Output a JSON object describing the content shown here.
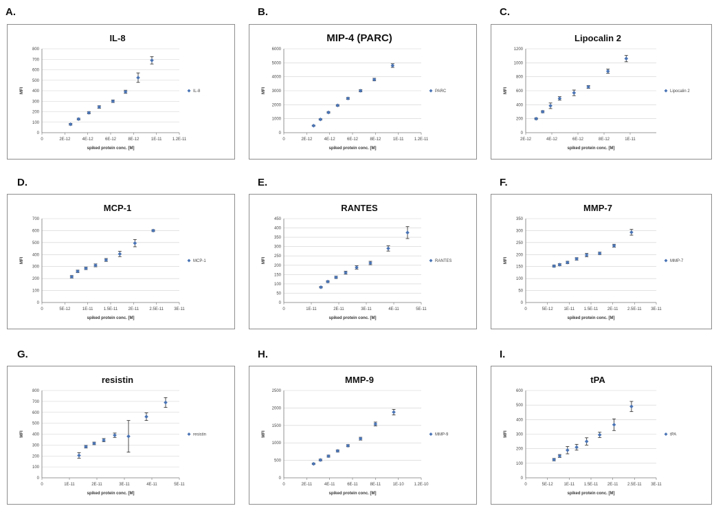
{
  "chart_data": [
    {
      "panel": "A.",
      "type": "scatter",
      "title": "IL-8",
      "xlabel": "spiked protein conc. [M]",
      "ylabel": "MFI",
      "xlim": [
        0,
        1.2e-11
      ],
      "ylim": [
        0,
        800
      ],
      "x_ticks": [
        0,
        2e-12,
        4e-12,
        6e-12,
        8e-12,
        1e-11,
        1.2e-11
      ],
      "x_tick_labels": [
        "0",
        "2E-12",
        "4E-12",
        "6E-12",
        "8E-12",
        "1E-11",
        "1.2E-11"
      ],
      "y_ticks": [
        0,
        100,
        200,
        300,
        400,
        500,
        600,
        700,
        800
      ],
      "y_tick_labels": [
        "0",
        "100",
        "200",
        "300",
        "400",
        "500",
        "600",
        "700",
        "800"
      ],
      "grid": "horizontal",
      "legend": "right",
      "series": [
        {
          "name": "IL-8",
          "color": "#4a74b5",
          "x": [
            2.5e-12,
            3.2e-12,
            4.1e-12,
            5e-12,
            6.2e-12,
            7.3e-12,
            8.4e-12,
            9.6e-12
          ],
          "y": [
            80,
            130,
            190,
            245,
            300,
            390,
            525,
            690
          ],
          "err": [
            8,
            8,
            10,
            12,
            12,
            15,
            45,
            35
          ]
        }
      ]
    },
    {
      "panel": "B.",
      "type": "scatter",
      "title": "MIP-4 (PARC)",
      "xlabel": "spiked protein conc. [M]",
      "ylabel": "MFI",
      "xlim": [
        0,
        1.2e-11
      ],
      "ylim": [
        0,
        6000
      ],
      "x_ticks": [
        0,
        2e-12,
        4e-12,
        6e-12,
        8e-12,
        1e-11,
        1.2e-11
      ],
      "x_tick_labels": [
        "0",
        "2E-12",
        "4E-12",
        "6E-12",
        "8E-12",
        "1E-11",
        "1.2E-11"
      ],
      "y_ticks": [
        0,
        1000,
        2000,
        3000,
        4000,
        5000,
        6000
      ],
      "y_tick_labels": [
        "0",
        "1000",
        "2000",
        "3000",
        "4000",
        "5000",
        "6000"
      ],
      "grid": "horizontal",
      "legend": "right",
      "series": [
        {
          "name": "PARC",
          "color": "#4a74b5",
          "x": [
            2.6e-12,
            3.2e-12,
            3.9e-12,
            4.7e-12,
            5.6e-12,
            6.7e-12,
            7.9e-12,
            9.5e-12
          ],
          "y": [
            500,
            950,
            1450,
            1950,
            2450,
            3000,
            3800,
            4800
          ],
          "err": [
            40,
            50,
            60,
            60,
            70,
            80,
            90,
            130
          ]
        }
      ]
    },
    {
      "panel": "C.",
      "type": "scatter",
      "title": "Lipocalin 2",
      "xlabel": "spiked protein conc. [M]",
      "ylabel": "MFI",
      "xlim": [
        2e-12,
        1.2e-11
      ],
      "ylim": [
        0,
        1200
      ],
      "x_ticks": [
        2e-12,
        4e-12,
        6e-12,
        8e-12,
        1e-11
      ],
      "x_tick_labels": [
        "2E-12",
        "4E-12",
        "6E-12",
        "8E-12",
        "1E-11"
      ],
      "y_ticks": [
        0,
        200,
        400,
        600,
        800,
        1000,
        1200
      ],
      "y_tick_labels": [
        "0",
        "200",
        "400",
        "600",
        "800",
        "1000",
        "1200"
      ],
      "grid": "horizontal",
      "legend": "right",
      "series": [
        {
          "name": "Lipocalin 2",
          "color": "#4a74b5",
          "x": [
            2.8e-12,
            3.3e-12,
            3.9e-12,
            4.6e-12,
            5.7e-12,
            6.8e-12,
            8.3e-12,
            9.7e-12
          ],
          "y": [
            200,
            300,
            385,
            490,
            570,
            655,
            880,
            1060
          ],
          "err": [
            12,
            15,
            40,
            25,
            40,
            20,
            30,
            45
          ]
        }
      ]
    },
    {
      "panel": "D.",
      "type": "scatter",
      "title": "MCP-1",
      "xlabel": "spiked protein conc. [M]",
      "ylabel": "MFI",
      "xlim": [
        0,
        3e-11
      ],
      "ylim": [
        0,
        700
      ],
      "x_ticks": [
        0,
        5e-12,
        1e-11,
        1.5e-11,
        2e-11,
        2.5e-11,
        3e-11
      ],
      "x_tick_labels": [
        "0",
        "5E-12",
        "1E-11",
        "1.5E-11",
        "2E-11",
        "2.5E-11",
        "3E-11"
      ],
      "y_ticks": [
        0,
        100,
        200,
        300,
        400,
        500,
        600,
        700
      ],
      "y_tick_labels": [
        "0",
        "100",
        "200",
        "300",
        "400",
        "500",
        "600",
        "700"
      ],
      "grid": "horizontal",
      "legend": "right",
      "series": [
        {
          "name": "MCP-1",
          "color": "#4a74b5",
          "x": [
            6.5e-12,
            7.8e-12,
            9.6e-12,
            1.17e-11,
            1.4e-11,
            1.7e-11,
            2.03e-11,
            2.43e-11
          ],
          "y": [
            215,
            260,
            285,
            310,
            355,
            405,
            495,
            600
          ],
          "err": [
            10,
            10,
            10,
            12,
            12,
            22,
            30,
            8
          ]
        }
      ]
    },
    {
      "panel": "E.",
      "type": "scatter",
      "title": "RANTES",
      "xlabel": "spiked protein conc. [M]",
      "ylabel": "MFI",
      "xlim": [
        0,
        5e-11
      ],
      "ylim": [
        0,
        450
      ],
      "x_ticks": [
        0,
        1e-11,
        2e-11,
        3e-11,
        4e-11,
        5e-11
      ],
      "x_tick_labels": [
        "0",
        "1E-11",
        "2E-11",
        "3E-11",
        "4E-11",
        "5E-11"
      ],
      "y_ticks": [
        0,
        50,
        100,
        150,
        200,
        250,
        300,
        350,
        400,
        450
      ],
      "y_tick_labels": [
        "0",
        "50",
        "100",
        "150",
        "200",
        "250",
        "300",
        "350",
        "400",
        "450"
      ],
      "grid": "horizontal",
      "legend": "right",
      "series": [
        {
          "name": "RANTES",
          "color": "#4a74b5",
          "x": [
            1.35e-11,
            1.6e-11,
            1.9e-11,
            2.25e-11,
            2.65e-11,
            3.15e-11,
            3.8e-11,
            4.5e-11
          ],
          "y": [
            82,
            112,
            135,
            160,
            188,
            212,
            290,
            375
          ],
          "err": [
            4,
            5,
            6,
            8,
            9,
            9,
            14,
            32
          ]
        }
      ]
    },
    {
      "panel": "F.",
      "type": "scatter",
      "title": "MMP-7",
      "xlabel": "spiked protein conc. [M]",
      "ylabel": "MFI",
      "xlim": [
        0,
        3e-11
      ],
      "ylim": [
        0,
        350
      ],
      "x_ticks": [
        0,
        5e-12,
        1e-11,
        1.5e-11,
        2e-11,
        2.5e-11,
        3e-11
      ],
      "x_tick_labels": [
        "0",
        "5E-12",
        "1E-11",
        "1.5E-11",
        "2E-11",
        "2.5E-11",
        "3E-11"
      ],
      "y_ticks": [
        0,
        50,
        100,
        150,
        200,
        250,
        300,
        350
      ],
      "y_tick_labels": [
        "0",
        "50",
        "100",
        "150",
        "200",
        "250",
        "300",
        "350"
      ],
      "grid": "horizontal",
      "legend": "right",
      "series": [
        {
          "name": "MMP-7",
          "color": "#4a74b5",
          "x": [
            6.5e-12,
            7.8e-12,
            9.6e-12,
            1.17e-11,
            1.4e-11,
            1.7e-11,
            2.03e-11,
            2.43e-11
          ],
          "y": [
            152,
            158,
            167,
            182,
            198,
            205,
            237,
            293
          ],
          "err": [
            4,
            4,
            5,
            5,
            7,
            5,
            6,
            12
          ]
        }
      ]
    },
    {
      "panel": "G.",
      "type": "scatter",
      "title": "resistin",
      "xlabel": "spiked protein conc. [M]",
      "ylabel": "MFI",
      "xlim": [
        0,
        5e-11
      ],
      "ylim": [
        0,
        800
      ],
      "x_ticks": [
        0,
        1e-11,
        2e-11,
        3e-11,
        4e-11,
        5e-11
      ],
      "x_tick_labels": [
        "0",
        "1E-11",
        "2E-11",
        "3E-11",
        "4E-11",
        "5E-11"
      ],
      "y_ticks": [
        0,
        100,
        200,
        300,
        400,
        500,
        600,
        700,
        800
      ],
      "y_tick_labels": [
        "0",
        "100",
        "200",
        "300",
        "400",
        "500",
        "600",
        "700",
        "800"
      ],
      "grid": "horizontal",
      "legend": "right",
      "series": [
        {
          "name": "resistin",
          "color": "#4a74b5",
          "x": [
            1.35e-11,
            1.6e-11,
            1.9e-11,
            2.25e-11,
            2.65e-11,
            3.15e-11,
            3.8e-11,
            4.5e-11
          ],
          "y": [
            205,
            285,
            315,
            345,
            390,
            380,
            560,
            690
          ],
          "err": [
            25,
            12,
            12,
            15,
            20,
            145,
            35,
            45
          ]
        }
      ]
    },
    {
      "panel": "H.",
      "type": "scatter",
      "title": "MMP-9",
      "xlabel": "spiked protein conc. [M]",
      "ylabel": "MFI",
      "xlim": [
        0,
        1.2e-10
      ],
      "ylim": [
        0,
        2500
      ],
      "x_ticks": [
        0,
        2e-11,
        4e-11,
        6e-11,
        8e-11,
        1e-10,
        1.2e-10
      ],
      "x_tick_labels": [
        "0",
        "2E-11",
        "4E-11",
        "6E-11",
        "8E-11",
        "1E-10",
        "1.2E-10"
      ],
      "y_ticks": [
        0,
        500,
        1000,
        1500,
        2000,
        2500
      ],
      "y_tick_labels": [
        "0",
        "500",
        "1000",
        "1500",
        "2000",
        "2500"
      ],
      "grid": "horizontal",
      "legend": "right",
      "series": [
        {
          "name": "MMP-9",
          "color": "#4a74b5",
          "x": [
            2.6e-11,
            3.2e-11,
            3.9e-11,
            4.7e-11,
            5.6e-11,
            6.7e-11,
            8e-11,
            9.6e-11
          ],
          "y": [
            400,
            510,
            620,
            770,
            920,
            1120,
            1540,
            1880
          ],
          "err": [
            20,
            25,
            30,
            30,
            30,
            40,
            55,
            80
          ]
        }
      ]
    },
    {
      "panel": "I.",
      "type": "scatter",
      "title": "tPA",
      "xlabel": "spiked protein conc. [M]",
      "ylabel": "MFI",
      "xlim": [
        0,
        3e-11
      ],
      "ylim": [
        0,
        600
      ],
      "x_ticks": [
        0,
        5e-12,
        1e-11,
        1.5e-11,
        2e-11,
        2.5e-11,
        3e-11
      ],
      "x_tick_labels": [
        "0",
        "5E-12",
        "1E-11",
        "1.5E-11",
        "2E-11",
        "2.5E-11",
        "3E-11"
      ],
      "y_ticks": [
        0,
        100,
        200,
        300,
        400,
        500,
        600
      ],
      "y_tick_labels": [
        "0",
        "100",
        "200",
        "300",
        "400",
        "500",
        "600"
      ],
      "grid": "horizontal",
      "legend": "right",
      "series": [
        {
          "name": "tPA",
          "color": "#4a74b5",
          "x": [
            6.5e-12,
            7.8e-12,
            9.6e-12,
            1.17e-11,
            1.4e-11,
            1.7e-11,
            2.03e-11,
            2.43e-11
          ],
          "y": [
            125,
            150,
            190,
            210,
            250,
            295,
            365,
            490
          ],
          "err": [
            8,
            10,
            25,
            20,
            25,
            18,
            40,
            35
          ]
        }
      ]
    }
  ]
}
